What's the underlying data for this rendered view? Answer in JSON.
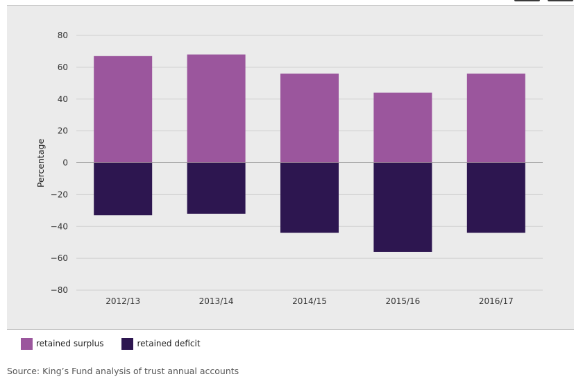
{
  "chart_data": {
    "type": "bar",
    "stacked": true,
    "categories": [
      "2012/13",
      "2013/14",
      "2014/15",
      "2015/16",
      "2016/17"
    ],
    "series": [
      {
        "name": "retained surplus",
        "color": "#9b569d",
        "values": [
          67,
          68,
          56,
          44,
          56
        ]
      },
      {
        "name": "retained deficit",
        "color": "#2d1650",
        "values": [
          -33,
          -32,
          -44,
          -56,
          -44
        ]
      }
    ],
    "ylabel": "Percentage",
    "xlabel": "",
    "ylim": [
      -80,
      80
    ],
    "yticks": [
      80,
      60,
      40,
      20,
      0,
      -20,
      -40,
      -60,
      -80
    ],
    "grid": true,
    "legend_position": "bottom-left"
  },
  "source_text": "Source: King’s Fund analysis of trust annual accounts"
}
